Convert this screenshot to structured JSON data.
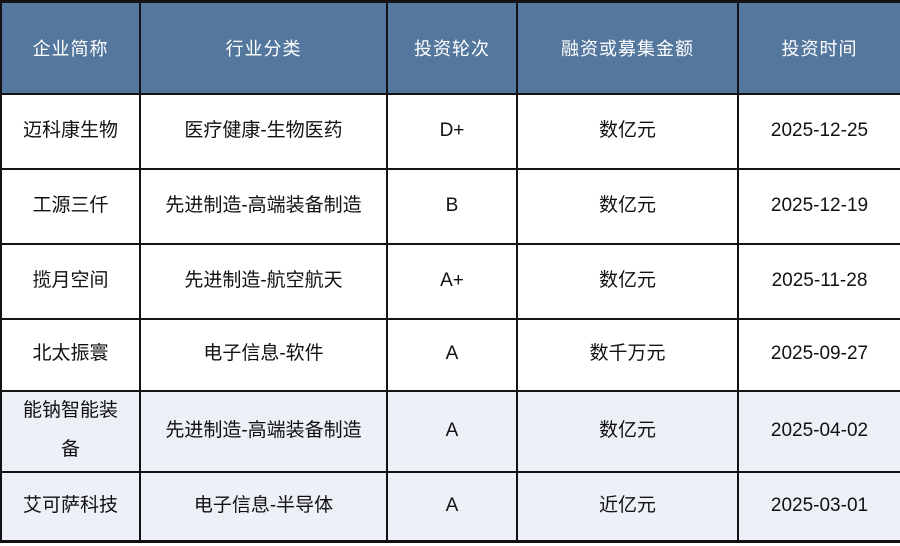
{
  "table": {
    "headers": [
      "企业简称",
      "行业分类",
      "投资轮次",
      "融资或募集金额",
      "投资时间"
    ],
    "rows": [
      {
        "company": "迈科康生物",
        "industry": "医疗健康-生物医药",
        "round": "D+",
        "amount": "数亿元",
        "date": "2025-12-25",
        "highlight": false
      },
      {
        "company": "工源三仟",
        "industry": "先进制造-高端装备制造",
        "round": "B",
        "amount": "数亿元",
        "date": "2025-12-19",
        "highlight": false
      },
      {
        "company": "揽月空间",
        "industry": "先进制造-航空航天",
        "round": "A+",
        "amount": "数亿元",
        "date": "2025-11-28",
        "highlight": false
      },
      {
        "company": "北太振寰",
        "industry": "电子信息-软件",
        "round": "A",
        "amount": "数千万元",
        "date": "2025-09-27",
        "highlight": false
      },
      {
        "company": "能钠智能装备",
        "industry": "先进制造-高端装备制造",
        "round": "A",
        "amount": "数亿元",
        "date": "2025-04-02",
        "highlight": true
      },
      {
        "company": "艾可萨科技",
        "industry": "电子信息-半导体",
        "round": "A",
        "amount": "近亿元",
        "date": "2025-03-01",
        "highlight": true
      }
    ],
    "colors": {
      "header_bg": "#54779E",
      "header_text": "#FFFFFF",
      "row_bg": "#FFFFFF",
      "highlight_row_bg": "#EDF1F7",
      "border": "#131313",
      "body_text": "#111111"
    }
  },
  "chart_data": {
    "type": "table",
    "title": "",
    "columns": [
      "企业简称",
      "行业分类",
      "投资轮次",
      "融资或募集金额",
      "投资时间"
    ],
    "rows": [
      [
        "迈科康生物",
        "医疗健康-生物医药",
        "D+",
        "数亿元",
        "2025-12-25"
      ],
      [
        "工源三仟",
        "先进制造-高端装备制造",
        "B",
        "数亿元",
        "2025-12-19"
      ],
      [
        "揽月空间",
        "先进制造-航空航天",
        "A+",
        "数亿元",
        "2025-11-28"
      ],
      [
        "北太振寰",
        "电子信息-软件",
        "A",
        "数千万元",
        "2025-09-27"
      ],
      [
        "能钠智能装备",
        "先进制造-高端装备制造",
        "A",
        "数亿元",
        "2025-04-02"
      ],
      [
        "艾可萨科技",
        "电子信息-半导体",
        "A",
        "近亿元",
        "2025-03-01"
      ]
    ]
  }
}
